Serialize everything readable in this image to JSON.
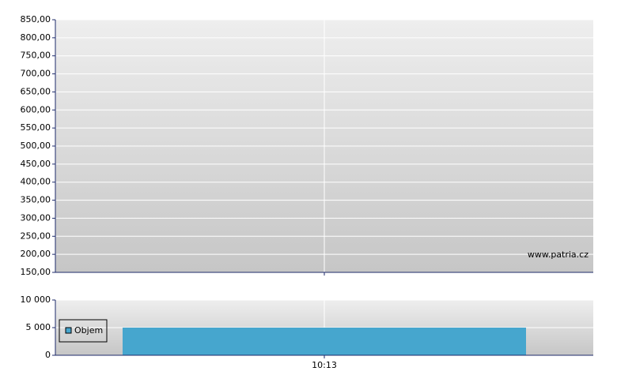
{
  "chart_data": [
    {
      "type": "line",
      "ylim": [
        150,
        850
      ],
      "yticks": [
        {
          "value": 150,
          "label": "150,00"
        },
        {
          "value": 200,
          "label": "200,00"
        },
        {
          "value": 250,
          "label": "250,00"
        },
        {
          "value": 300,
          "label": "300,00"
        },
        {
          "value": 350,
          "label": "350,00"
        },
        {
          "value": 400,
          "label": "400,00"
        },
        {
          "value": 450,
          "label": "450,00"
        },
        {
          "value": 500,
          "label": "500,00"
        },
        {
          "value": 550,
          "label": "550,00"
        },
        {
          "value": 600,
          "label": "600,00"
        },
        {
          "value": 650,
          "label": "650,00"
        },
        {
          "value": 700,
          "label": "700,00"
        },
        {
          "value": 750,
          "label": "750,00"
        },
        {
          "value": 800,
          "label": "800,00"
        },
        {
          "value": 850,
          "label": "850,00"
        }
      ],
      "annotation": "www.patria.cz",
      "grid": true
    },
    {
      "type": "bar",
      "categories": [
        "10:13"
      ],
      "series": [
        {
          "name": "Objem",
          "color": "#46a6ce",
          "values": [
            5000
          ]
        }
      ],
      "ylim": [
        0,
        10000
      ],
      "yticks": [
        0,
        {
          "value": 5000,
          "label": "5 000"
        },
        {
          "value": 10000,
          "label": "10 000"
        }
      ],
      "grid": true,
      "legend": "left"
    }
  ]
}
